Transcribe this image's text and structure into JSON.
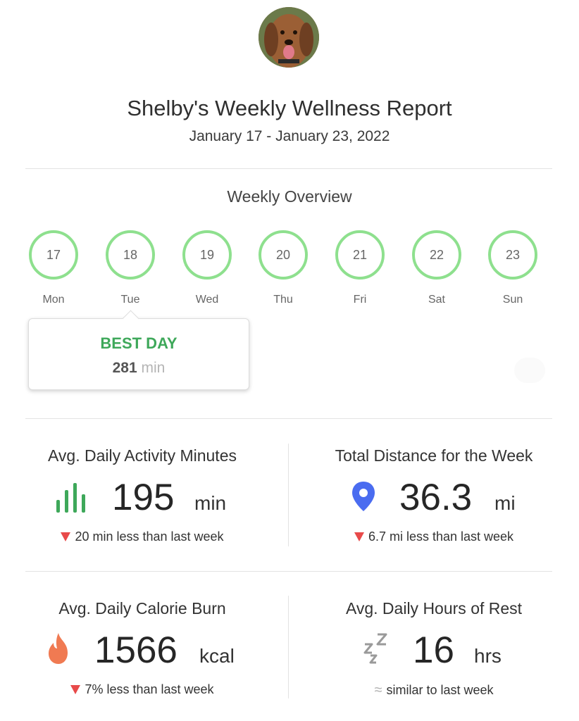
{
  "header": {
    "title": "Shelby's Weekly Wellness Report",
    "date_range": "January 17 - January 23, 2022",
    "avatar_icon": "dog-avatar"
  },
  "overview": {
    "title": "Weekly Overview",
    "ring_color": "#8ee08e",
    "days": [
      {
        "num": "17",
        "label": "Mon"
      },
      {
        "num": "18",
        "label": "Tue"
      },
      {
        "num": "19",
        "label": "Wed"
      },
      {
        "num": "20",
        "label": "Thu"
      },
      {
        "num": "21",
        "label": "Fri"
      },
      {
        "num": "22",
        "label": "Sat"
      },
      {
        "num": "23",
        "label": "Sun"
      }
    ],
    "best_day": {
      "label": "BEST DAY",
      "value": "281",
      "unit": "min",
      "color": "#3ea85a"
    }
  },
  "stats": {
    "activity": {
      "title": "Avg. Daily Activity Minutes",
      "icon": "bar-chart-icon",
      "icon_color": "#3ea85a",
      "value": "195",
      "unit": "min",
      "delta": "20 min less than last week",
      "trend": "down"
    },
    "distance": {
      "title": "Total Distance for the Week",
      "icon": "map-pin-icon",
      "icon_color": "#4a6cf0",
      "value": "36.3",
      "unit": "mi",
      "delta": "6.7 mi less than last week",
      "trend": "down"
    },
    "calories": {
      "title": "Avg. Daily Calorie Burn",
      "icon": "flame-icon",
      "icon_color": "#f07a52",
      "value": "1566",
      "unit": "kcal",
      "delta": "7% less than last week",
      "trend": "down"
    },
    "rest": {
      "title": "Avg. Daily Hours of Rest",
      "icon": "sleep-zzz-icon",
      "icon_color": "#9a9a9a",
      "value": "16",
      "unit": "hrs",
      "delta": "similar to last week",
      "trend": "flat",
      "approx_symbol": "≈"
    }
  },
  "colors": {
    "down_arrow": "#e84a4a",
    "divider": "#e3e3e3"
  }
}
